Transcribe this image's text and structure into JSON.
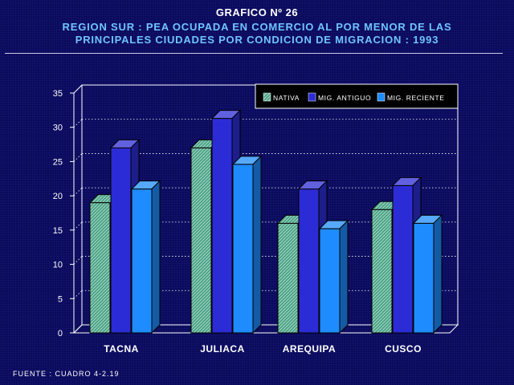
{
  "header": {
    "graph_label": "GRAFICO Nº 26",
    "title_line1": "REGION SUR : PEA OCUPADA EN COMERCIO AL POR MENOR DE LAS",
    "title_line2": "PRINCIPALES CIUDADES POR CONDICION DE MIGRACION : 1993"
  },
  "footer": {
    "source": "FUENTE : CUADRO 4-2.19"
  },
  "colors": {
    "nativa": "#4ea38a",
    "mig_antiguo": "#2c2cd6",
    "mig_reciente": "#1e8cff"
  },
  "chart_data": {
    "type": "bar",
    "title": "REGION SUR : PEA OCUPADA EN COMERCIO AL POR MENOR DE LAS PRINCIPALES CIUDADES POR CONDICION DE MIGRACION : 1993",
    "xlabel": "",
    "ylabel": "",
    "ylim": [
      0,
      35
    ],
    "yticks": [
      0,
      5,
      10,
      15,
      20,
      25,
      30,
      35
    ],
    "grid": true,
    "legend_position": "top-right",
    "categories": [
      "TACNA",
      "JULIACA",
      "AREQUIPA",
      "CUSCO"
    ],
    "series": [
      {
        "name": "NATIVA",
        "key": "nativa",
        "values": [
          19,
          27,
          16,
          18
        ]
      },
      {
        "name": "MIG. ANTIGUO",
        "key": "mig_antiguo",
        "values": [
          27,
          31.3,
          21,
          21.5
        ]
      },
      {
        "name": "MIG. RECIENTE",
        "key": "mig_reciente",
        "values": [
          21,
          24.6,
          15.2,
          16
        ]
      }
    ]
  }
}
